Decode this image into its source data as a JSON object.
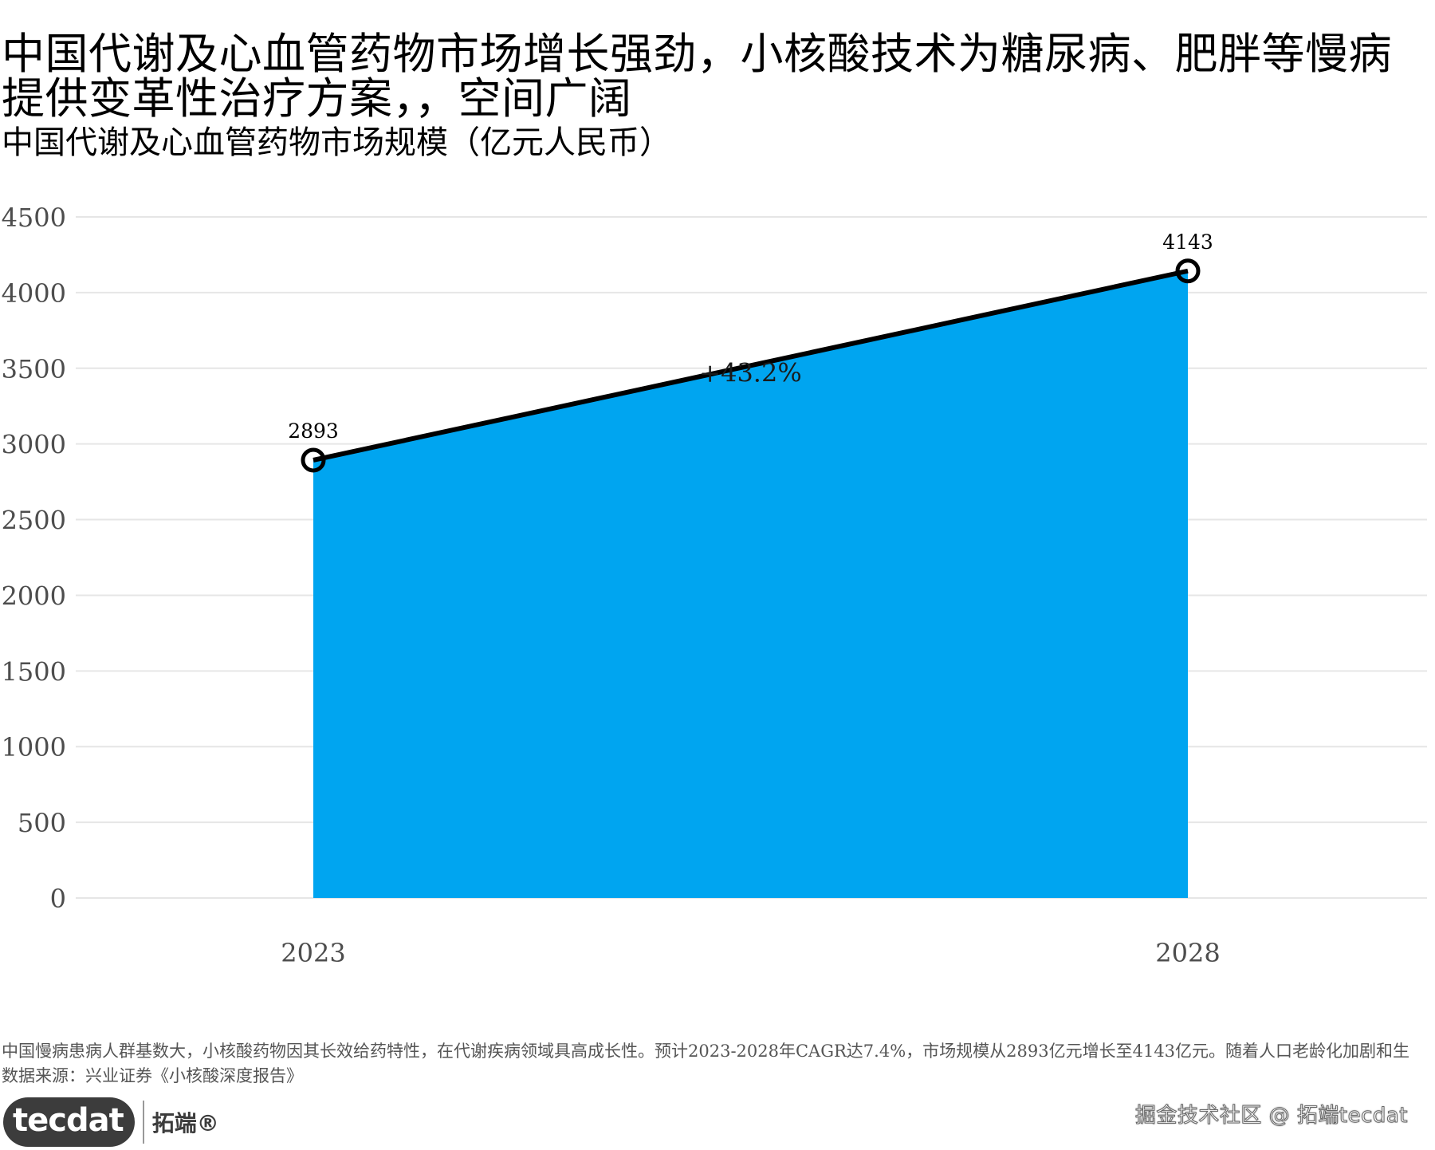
{
  "header": {
    "title": "中国代谢及心血管药物市场增长强劲，小核酸技术为糖尿病、肥胖等慢病提供变革性治疗方案，，空间广阔",
    "subtitle": "中国代谢及心血管药物市场规模（亿元人民币）"
  },
  "chart_data": {
    "type": "area",
    "title": "",
    "subtitle": "",
    "xlabel": "",
    "ylabel": "",
    "categories": [
      "2023",
      "2028"
    ],
    "values": [
      2893,
      4143
    ],
    "data_labels": [
      "2893",
      "4143"
    ],
    "annotation": "+43.2%",
    "ylim": [
      0,
      4500
    ],
    "yticks": [
      0,
      500,
      1000,
      1500,
      2000,
      2500,
      3000,
      3500,
      4000,
      4500
    ],
    "ytick_labels": [
      "0",
      "500",
      "1000",
      "1500",
      "2000",
      "2500",
      "3000",
      "3500",
      "4000",
      "4500"
    ],
    "grid": true,
    "legend": "none",
    "fill_color": "#00a5f0",
    "line_color": "#000000",
    "grid_color": "#e6e6e6"
  },
  "footer": {
    "caption": "中国慢病患病人群基数大，小核酸药物因其长效给药特性，在代谢疾病领域具高成长性。预计2023-2028年CAGR达7.4%，市场规模从2893亿元增长至4143亿元。随着人口老龄化加剧和生",
    "source": "数据来源：兴业证券《小核酸深度报告》",
    "logo_badge": "tecdat",
    "logo_text": "拓端®",
    "watermark": "掘金技术社区 @ 拓端tecdat"
  }
}
